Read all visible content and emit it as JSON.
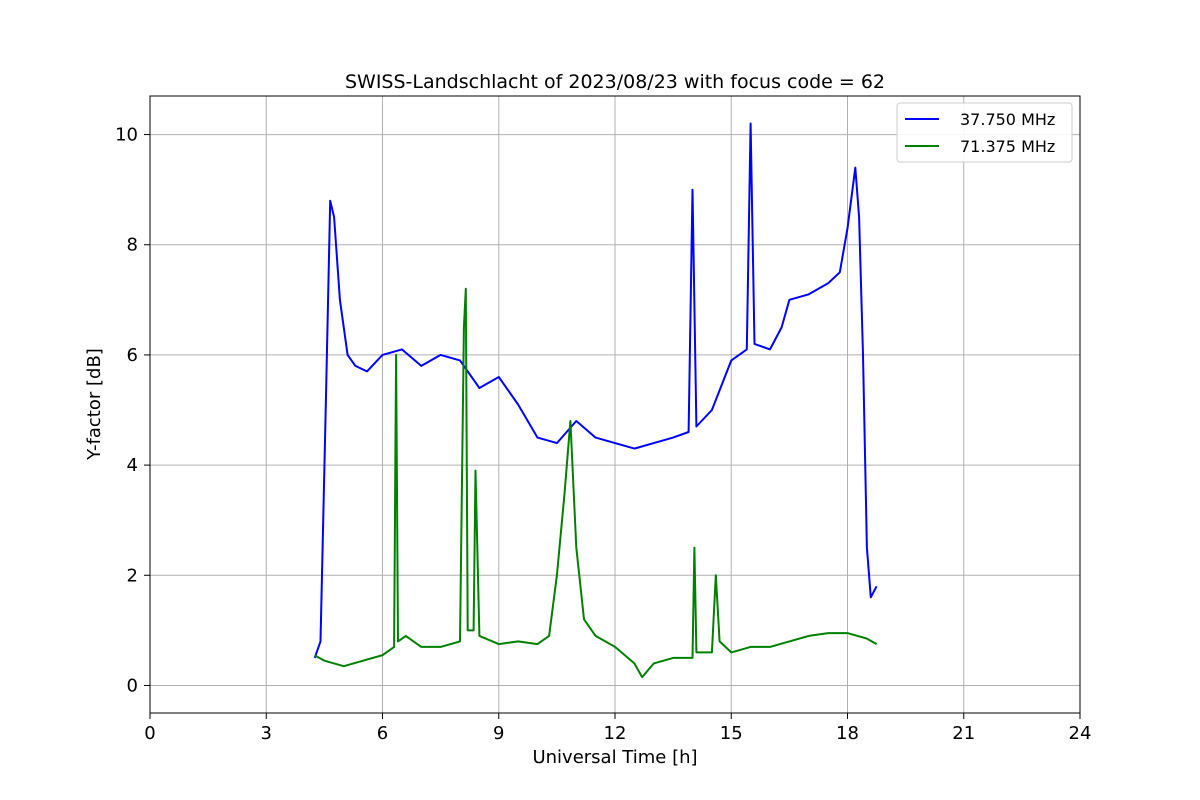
{
  "chart_data": {
    "type": "line",
    "title": "SWISS-Landschlacht of 2023/08/23 with focus code = 62",
    "xlabel": "Universal Time [h]",
    "ylabel": "Y-factor [dB]",
    "xlim": [
      0,
      24
    ],
    "ylim": [
      -0.5,
      10.7
    ],
    "xticks": [
      0,
      3,
      6,
      9,
      12,
      15,
      18,
      21,
      24
    ],
    "yticks": [
      0,
      2,
      4,
      6,
      8,
      10
    ],
    "grid": true,
    "legend_position": "top-right",
    "series": [
      {
        "name": "37.750 MHz",
        "color": "#0000ff",
        "x": [
          4.25,
          4.4,
          4.55,
          4.65,
          4.75,
          4.9,
          5.1,
          5.3,
          5.6,
          6.0,
          6.5,
          7.0,
          7.5,
          8.0,
          8.5,
          9.0,
          9.5,
          10.0,
          10.5,
          11.0,
          11.5,
          12.0,
          12.5,
          13.0,
          13.5,
          13.9,
          14.0,
          14.1,
          14.5,
          15.0,
          15.4,
          15.5,
          15.6,
          16.0,
          16.3,
          16.5,
          17.0,
          17.5,
          17.8,
          18.0,
          18.2,
          18.3,
          18.4,
          18.5,
          18.6,
          18.75
        ],
        "y": [
          0.5,
          0.8,
          5.5,
          8.8,
          8.5,
          7.0,
          6.0,
          5.8,
          5.7,
          6.0,
          6.1,
          5.8,
          6.0,
          5.9,
          5.4,
          5.6,
          5.1,
          4.5,
          4.4,
          4.8,
          4.5,
          4.4,
          4.3,
          4.4,
          4.5,
          4.6,
          9.0,
          4.7,
          5.0,
          5.9,
          6.1,
          10.2,
          6.2,
          6.1,
          6.5,
          7.0,
          7.1,
          7.3,
          7.5,
          8.3,
          9.4,
          8.5,
          6.0,
          2.5,
          1.6,
          1.8
        ]
      },
      {
        "name": "71.375 MHz",
        "color": "#008000",
        "x": [
          4.25,
          4.5,
          5.0,
          5.5,
          6.0,
          6.3,
          6.35,
          6.4,
          6.6,
          7.0,
          7.5,
          8.0,
          8.1,
          8.15,
          8.2,
          8.35,
          8.4,
          8.5,
          9.0,
          9.5,
          10.0,
          10.3,
          10.5,
          10.7,
          10.85,
          11.0,
          11.2,
          11.5,
          12.0,
          12.5,
          12.7,
          13.0,
          13.5,
          14.0,
          14.05,
          14.1,
          14.5,
          14.6,
          14.7,
          15.0,
          15.5,
          16.0,
          16.5,
          17.0,
          17.5,
          18.0,
          18.5,
          18.75
        ],
        "y": [
          0.55,
          0.45,
          0.35,
          0.45,
          0.55,
          0.7,
          6.0,
          0.8,
          0.9,
          0.7,
          0.7,
          0.8,
          6.5,
          7.2,
          1.0,
          1.0,
          3.9,
          0.9,
          0.75,
          0.8,
          0.75,
          0.9,
          2.0,
          3.5,
          4.8,
          2.5,
          1.2,
          0.9,
          0.7,
          0.4,
          0.15,
          0.4,
          0.5,
          0.5,
          2.5,
          0.6,
          0.6,
          2.0,
          0.8,
          0.6,
          0.7,
          0.7,
          0.8,
          0.9,
          0.95,
          0.95,
          0.85,
          0.75
        ]
      }
    ]
  }
}
